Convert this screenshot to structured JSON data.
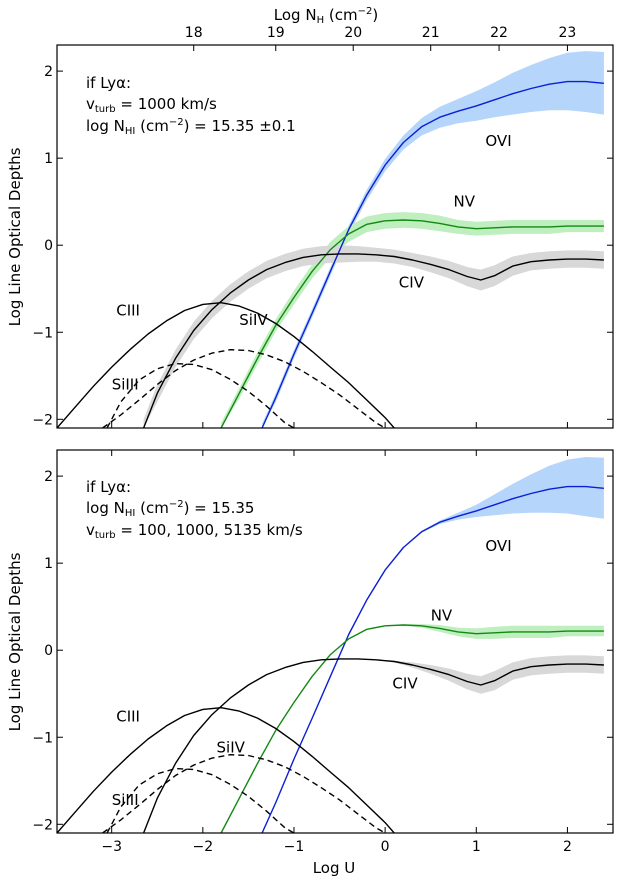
{
  "figure": {
    "top_axis_title_main": "Log N",
    "top_axis_title_sub": "H",
    "top_axis_title_unit": "(cm",
    "top_axis_title_exp": "−2",
    "top_axis_title_close": ")",
    "ylabel": "Log Line Optical Depths",
    "xlabel": "Log U",
    "colors": {
      "OVI": "#0b1fd6",
      "OVI_band": "#b5d5fb",
      "NV": "#128a12",
      "NV_band": "#bfeebf",
      "CIV": "#000000",
      "CIV_band": "#d8d8d8",
      "CIII": "#000000",
      "SiIV": "#000000",
      "SiIII": "#000000"
    }
  },
  "panels": [
    {
      "annotation": {
        "line1": "if Lyα:",
        "line2_pre": "v",
        "line2_sub": "turb",
        "line2_post": " = 1000 km/s",
        "line3_pre": "log N",
        "line3_sub": "HI",
        "line3_post": " (cm",
        "line3_exp": "−2",
        "line3_tail": ") = 15.35 ±0.1"
      }
    },
    {
      "annotation": {
        "line1": "if Lyα:",
        "line2_pre": "log N",
        "line2_sub": "HI",
        "line2_post": " (cm",
        "line2_exp": "−2",
        "line2_tail": ") = 15.35",
        "line3_pre": "v",
        "line3_sub": "turb",
        "line3_post": " = 100, 1000, 5135 km/s"
      }
    }
  ],
  "chart_data": [
    {
      "type": "line",
      "panel": "top",
      "xlabel": "Log U",
      "ylabel": "Log Line Optical Depths",
      "top_xlabel": "Log N_H (cm^-2)",
      "xlim": [
        -3.6,
        2.5
      ],
      "ylim": [
        -2.1,
        2.3
      ],
      "x_ticks": [
        -3,
        -2,
        -1,
        0,
        1,
        2
      ],
      "y_ticks": [
        -2,
        -1,
        0,
        1,
        2
      ],
      "y_tick_labels": [
        "−2",
        "−1",
        "0",
        "1",
        "2"
      ],
      "top_ticks": {
        "values": [
          18,
          19,
          20,
          21,
          22,
          23
        ],
        "log_u_positions": [
          -2.1,
          -1.2,
          -0.35,
          0.5,
          1.25,
          2.0
        ],
        "labels": [
          "18",
          "19",
          "20",
          "21",
          "22",
          "23"
        ]
      },
      "series": [
        {
          "name": "OVI",
          "style": "solid",
          "band": true,
          "x": [
            -1.35,
            -1.2,
            -1.0,
            -0.8,
            -0.6,
            -0.4,
            -0.2,
            0.0,
            0.2,
            0.4,
            0.6,
            0.8,
            1.0,
            1.2,
            1.4,
            1.6,
            1.8,
            2.0,
            2.2,
            2.4
          ],
          "y": [
            -2.1,
            -1.75,
            -1.25,
            -0.78,
            -0.3,
            0.18,
            0.58,
            0.92,
            1.18,
            1.36,
            1.47,
            1.54,
            1.6,
            1.67,
            1.74,
            1.8,
            1.85,
            1.88,
            1.88,
            1.86
          ],
          "band_width": [
            0.05,
            0.05,
            0.05,
            0.05,
            0.05,
            0.05,
            0.06,
            0.07,
            0.08,
            0.1,
            0.12,
            0.14,
            0.17,
            0.2,
            0.24,
            0.27,
            0.3,
            0.33,
            0.35,
            0.36
          ]
        },
        {
          "name": "NV",
          "style": "solid",
          "band": true,
          "x": [
            -1.8,
            -1.6,
            -1.4,
            -1.2,
            -1.0,
            -0.8,
            -0.6,
            -0.4,
            -0.2,
            0.0,
            0.2,
            0.4,
            0.6,
            0.8,
            1.0,
            1.2,
            1.4,
            1.6,
            1.8,
            2.0,
            2.2,
            2.4
          ],
          "y": [
            -2.1,
            -1.7,
            -1.3,
            -0.92,
            -0.6,
            -0.3,
            -0.05,
            0.13,
            0.24,
            0.28,
            0.29,
            0.28,
            0.25,
            0.21,
            0.19,
            0.2,
            0.21,
            0.21,
            0.21,
            0.22,
            0.22,
            0.22
          ],
          "band_width": [
            0.06,
            0.06,
            0.07,
            0.07,
            0.08,
            0.08,
            0.09,
            0.09,
            0.09,
            0.09,
            0.09,
            0.09,
            0.09,
            0.08,
            0.08,
            0.08,
            0.08,
            0.08,
            0.08,
            0.07,
            0.07,
            0.07
          ]
        },
        {
          "name": "CIV",
          "style": "solid",
          "band": true,
          "x": [
            -2.65,
            -2.5,
            -2.3,
            -2.1,
            -1.9,
            -1.7,
            -1.5,
            -1.3,
            -1.1,
            -0.9,
            -0.7,
            -0.5,
            -0.3,
            -0.1,
            0.1,
            0.3,
            0.5,
            0.7,
            0.9,
            1.05,
            1.2,
            1.4,
            1.6,
            1.8,
            2.0,
            2.2,
            2.4
          ],
          "y": [
            -2.1,
            -1.7,
            -1.3,
            -0.98,
            -0.74,
            -0.55,
            -0.4,
            -0.28,
            -0.2,
            -0.14,
            -0.11,
            -0.1,
            -0.1,
            -0.11,
            -0.13,
            -0.17,
            -0.22,
            -0.28,
            -0.36,
            -0.4,
            -0.35,
            -0.24,
            -0.19,
            -0.17,
            -0.16,
            -0.16,
            -0.17
          ],
          "band_width": [
            0.1,
            0.1,
            0.1,
            0.1,
            0.1,
            0.1,
            0.1,
            0.1,
            0.1,
            0.1,
            0.1,
            0.1,
            0.09,
            0.08,
            0.08,
            0.08,
            0.09,
            0.1,
            0.11,
            0.12,
            0.12,
            0.11,
            0.1,
            0.1,
            0.1,
            0.1,
            0.1
          ]
        },
        {
          "name": "CIII",
          "style": "solid",
          "band": false,
          "x": [
            -3.6,
            -3.4,
            -3.2,
            -3.0,
            -2.8,
            -2.6,
            -2.4,
            -2.2,
            -2.0,
            -1.8,
            -1.6,
            -1.4,
            -1.2,
            -1.0,
            -0.8,
            -0.6,
            -0.4,
            -0.2,
            0.0,
            0.1
          ],
          "y": [
            -2.1,
            -1.86,
            -1.62,
            -1.4,
            -1.2,
            -1.02,
            -0.87,
            -0.75,
            -0.68,
            -0.66,
            -0.7,
            -0.78,
            -0.9,
            -1.05,
            -1.22,
            -1.4,
            -1.58,
            -1.78,
            -1.98,
            -2.1
          ]
        },
        {
          "name": "SiIV",
          "style": "dashed",
          "band": false,
          "x": [
            -3.1,
            -2.9,
            -2.7,
            -2.5,
            -2.3,
            -2.1,
            -1.9,
            -1.7,
            -1.5,
            -1.3,
            -1.1,
            -0.9,
            -0.7,
            -0.5,
            -0.3,
            -0.1,
            0.0
          ],
          "y": [
            -2.1,
            -1.95,
            -1.78,
            -1.6,
            -1.44,
            -1.32,
            -1.24,
            -1.2,
            -1.21,
            -1.26,
            -1.34,
            -1.45,
            -1.58,
            -1.72,
            -1.88,
            -2.04,
            -2.1
          ]
        },
        {
          "name": "SiIII",
          "style": "dashed",
          "band": false,
          "x": [
            -3.05,
            -2.9,
            -2.7,
            -2.5,
            -2.3,
            -2.1,
            -1.9,
            -1.7,
            -1.5,
            -1.3,
            -1.1,
            -1.0
          ],
          "y": [
            -2.1,
            -1.8,
            -1.55,
            -1.42,
            -1.36,
            -1.37,
            -1.43,
            -1.54,
            -1.68,
            -1.85,
            -2.04,
            -2.1
          ]
        }
      ],
      "labels": [
        {
          "name": "OVI",
          "x": 1.1,
          "y": 1.2
        },
        {
          "name": "NV",
          "x": 0.75,
          "y": 0.5
        },
        {
          "name": "CIV",
          "x": 0.15,
          "y": -0.43
        },
        {
          "name": "CIII",
          "x": -2.95,
          "y": -0.75
        },
        {
          "name": "SiIV",
          "x": -1.6,
          "y": -0.86
        },
        {
          "name": "SiIII",
          "x": -3.0,
          "y": -1.6
        }
      ]
    },
    {
      "type": "line",
      "panel": "bottom",
      "xlabel": "Log U",
      "ylabel": "Log Line Optical Depths",
      "xlim": [
        -3.6,
        2.5
      ],
      "ylim": [
        -2.1,
        2.3
      ],
      "x_ticks": [
        -3,
        -2,
        -1,
        0,
        1,
        2
      ],
      "x_tick_labels": [
        "−3",
        "−2",
        "−1",
        "0",
        "1",
        "2"
      ],
      "y_ticks": [
        -2,
        -1,
        0,
        1,
        2
      ],
      "y_tick_labels": [
        "−2",
        "−1",
        "0",
        "1",
        "2"
      ],
      "series": [
        {
          "name": "OVI",
          "style": "solid",
          "band": true,
          "x": [
            -1.35,
            -1.2,
            -1.0,
            -0.8,
            -0.6,
            -0.4,
            -0.2,
            0.0,
            0.2,
            0.4,
            0.6,
            0.8,
            1.0,
            1.2,
            1.4,
            1.6,
            1.8,
            2.0,
            2.2,
            2.4
          ],
          "y": [
            -2.1,
            -1.75,
            -1.25,
            -0.78,
            -0.3,
            0.18,
            0.58,
            0.92,
            1.18,
            1.36,
            1.47,
            1.54,
            1.6,
            1.67,
            1.74,
            1.8,
            1.85,
            1.88,
            1.88,
            1.86
          ],
          "band_width": [
            0,
            0,
            0,
            0,
            0,
            0,
            0,
            0,
            0,
            0.01,
            0.02,
            0.04,
            0.07,
            0.12,
            0.17,
            0.22,
            0.27,
            0.31,
            0.34,
            0.35
          ]
        },
        {
          "name": "NV",
          "style": "solid",
          "band": true,
          "x": [
            -1.8,
            -1.6,
            -1.4,
            -1.2,
            -1.0,
            -0.8,
            -0.6,
            -0.4,
            -0.2,
            0.0,
            0.2,
            0.4,
            0.6,
            0.8,
            1.0,
            1.2,
            1.4,
            1.6,
            1.8,
            2.0,
            2.2,
            2.4
          ],
          "y": [
            -2.1,
            -1.7,
            -1.3,
            -0.92,
            -0.6,
            -0.3,
            -0.05,
            0.13,
            0.24,
            0.28,
            0.29,
            0.28,
            0.25,
            0.21,
            0.19,
            0.2,
            0.21,
            0.21,
            0.21,
            0.22,
            0.22,
            0.22
          ],
          "band_width": [
            0,
            0,
            0,
            0,
            0,
            0,
            0,
            0,
            0,
            0,
            0.01,
            0.02,
            0.04,
            0.05,
            0.06,
            0.07,
            0.07,
            0.07,
            0.07,
            0.06,
            0.06,
            0.06
          ]
        },
        {
          "name": "CIV",
          "style": "solid",
          "band": true,
          "x": [
            -2.65,
            -2.5,
            -2.3,
            -2.1,
            -1.9,
            -1.7,
            -1.5,
            -1.3,
            -1.1,
            -0.9,
            -0.7,
            -0.5,
            -0.3,
            -0.1,
            0.1,
            0.3,
            0.5,
            0.7,
            0.9,
            1.05,
            1.2,
            1.4,
            1.6,
            1.8,
            2.0,
            2.2,
            2.4
          ],
          "y": [
            -2.1,
            -1.7,
            -1.3,
            -0.98,
            -0.74,
            -0.55,
            -0.4,
            -0.28,
            -0.2,
            -0.14,
            -0.11,
            -0.1,
            -0.1,
            -0.11,
            -0.13,
            -0.17,
            -0.22,
            -0.28,
            -0.36,
            -0.4,
            -0.35,
            -0.24,
            -0.19,
            -0.17,
            -0.16,
            -0.16,
            -0.17
          ],
          "band_width": [
            0,
            0,
            0,
            0,
            0,
            0,
            0,
            0,
            0,
            0,
            0,
            0,
            0,
            0,
            0.01,
            0.03,
            0.05,
            0.07,
            0.09,
            0.1,
            0.11,
            0.1,
            0.1,
            0.1,
            0.1,
            0.1,
            0.1
          ]
        },
        {
          "name": "CIII",
          "style": "solid",
          "band": false,
          "x": [
            -3.6,
            -3.4,
            -3.2,
            -3.0,
            -2.8,
            -2.6,
            -2.4,
            -2.2,
            -2.0,
            -1.8,
            -1.6,
            -1.4,
            -1.2,
            -1.0,
            -0.8,
            -0.6,
            -0.4,
            -0.2,
            0.0,
            0.1
          ],
          "y": [
            -2.1,
            -1.86,
            -1.62,
            -1.4,
            -1.2,
            -1.02,
            -0.87,
            -0.75,
            -0.68,
            -0.66,
            -0.7,
            -0.78,
            -0.9,
            -1.05,
            -1.22,
            -1.4,
            -1.58,
            -1.78,
            -1.98,
            -2.1
          ]
        },
        {
          "name": "SiIV",
          "style": "dashed",
          "band": false,
          "x": [
            -3.1,
            -2.9,
            -2.7,
            -2.5,
            -2.3,
            -2.1,
            -1.9,
            -1.7,
            -1.5,
            -1.3,
            -1.1,
            -0.9,
            -0.7,
            -0.5,
            -0.3,
            -0.1,
            0.0
          ],
          "y": [
            -2.1,
            -1.95,
            -1.78,
            -1.6,
            -1.44,
            -1.32,
            -1.24,
            -1.2,
            -1.21,
            -1.26,
            -1.34,
            -1.45,
            -1.58,
            -1.72,
            -1.88,
            -2.04,
            -2.1
          ]
        },
        {
          "name": "SiIII",
          "style": "dashed",
          "band": false,
          "x": [
            -3.05,
            -2.9,
            -2.7,
            -2.5,
            -2.3,
            -2.1,
            -1.9,
            -1.7,
            -1.5,
            -1.3,
            -1.1,
            -1.0
          ],
          "y": [
            -2.1,
            -1.8,
            -1.55,
            -1.42,
            -1.36,
            -1.37,
            -1.43,
            -1.54,
            -1.68,
            -1.85,
            -2.04,
            -2.1
          ]
        }
      ],
      "labels": [
        {
          "name": "OVI",
          "x": 1.1,
          "y": 1.2
        },
        {
          "name": "NV",
          "x": 0.5,
          "y": 0.4
        },
        {
          "name": "CIV",
          "x": 0.08,
          "y": -0.38
        },
        {
          "name": "CIII",
          "x": -2.95,
          "y": -0.76
        },
        {
          "name": "SiIV",
          "x": -1.85,
          "y": -1.12
        },
        {
          "name": "SiIII",
          "x": -3.0,
          "y": -1.72
        }
      ]
    }
  ]
}
